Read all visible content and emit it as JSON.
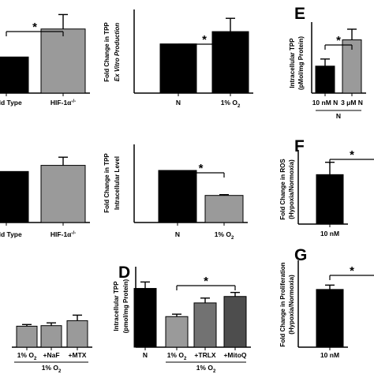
{
  "chart_data": [
    {
      "id": "A",
      "type": "bar",
      "panel_label": "",
      "ylabel": "",
      "ylim": [
        0,
        1.8
      ],
      "categories": [
        "Wild Type",
        "HIF-1α-/-"
      ],
      "values": [
        0.8,
        1.42
      ],
      "errors": [
        0,
        0.32
      ],
      "colors": [
        "#000000",
        "#9a9a9a"
      ],
      "significance": [
        {
          "from": 0,
          "to": 1,
          "label": "*"
        }
      ],
      "group_label": ""
    },
    {
      "id": "B",
      "type": "bar",
      "panel_label": "",
      "ylabel": "Fold Change in TPP Ex Vitro Production",
      "ylim": [
        0,
        1.7
      ],
      "categories": [
        "N",
        "1% O2"
      ],
      "values": [
        1.0,
        1.25
      ],
      "errors": [
        0,
        0.27
      ],
      "colors": [
        "#000000",
        "#000000"
      ],
      "significance": [
        {
          "from": 0,
          "to": 1,
          "label": "*"
        }
      ],
      "group_label": ""
    },
    {
      "id": "C",
      "type": "bar",
      "panel_label": "",
      "ylabel": "",
      "ylim": [
        0,
        1.5
      ],
      "categories": [
        "Wild Type",
        "HIF-1α-/-"
      ],
      "values": [
        1.0,
        1.12
      ],
      "errors": [
        0,
        0.16
      ],
      "colors": [
        "#000000",
        "#9a9a9a"
      ],
      "significance": [],
      "group_label": ""
    },
    {
      "id": "D1",
      "type": "bar",
      "panel_label": "",
      "ylabel": "Fold Change in TPP Intracellular Level",
      "ylim": [
        0,
        1.5
      ],
      "categories": [
        "N",
        "1% O2"
      ],
      "values": [
        1.0,
        0.52
      ],
      "errors": [
        0,
        0.015
      ],
      "colors": [
        "#000000",
        "#9a9a9a"
      ],
      "significance": [
        {
          "from": 0,
          "to": 1,
          "label": "*"
        }
      ],
      "group_label": ""
    },
    {
      "id": "E1",
      "type": "bar",
      "panel_label": "",
      "ylabel": "",
      "ylim": [
        0,
        100
      ],
      "categories": [
        "1% O2",
        "+NaF",
        "+MTX"
      ],
      "values": [
        38,
        39,
        48
      ],
      "errors": [
        3,
        5,
        10
      ],
      "colors": [
        "#9a9a9a",
        "#9a9a9a",
        "#9a9a9a"
      ],
      "significance": [],
      "group_label": "1% O2"
    },
    {
      "id": "D",
      "type": "bar",
      "panel_label": "D",
      "ylabel": "Intracellular TPP (pmol/mg Protein)",
      "ylim": [
        0,
        100
      ],
      "categories": [
        "N",
        "1% O2",
        "+TRLX",
        "+MitoQ"
      ],
      "values": [
        73,
        38,
        55,
        63
      ],
      "errors": [
        8,
        3,
        6,
        5
      ],
      "colors": [
        "#000000",
        "#9a9a9a",
        "#727272",
        "#4d4d4d"
      ],
      "significance": [
        {
          "from": 1,
          "to": 3,
          "label": "*"
        }
      ],
      "group_label": "1% O2"
    },
    {
      "id": "E",
      "type": "bar",
      "panel_label": "E",
      "ylabel": "Intracellular TPP (pMol/mg Protein)",
      "ylim": [
        0,
        100
      ],
      "categories": [
        "10 nM N",
        "3 μM N"
      ],
      "values": [
        38,
        75
      ],
      "errors": [
        10,
        15
      ],
      "colors": [
        "#000000",
        "#9a9a9a"
      ],
      "significance": [
        {
          "from": 0,
          "to": 1,
          "label": "*"
        }
      ],
      "group_label": "N"
    },
    {
      "id": "F",
      "type": "bar",
      "panel_label": "F",
      "ylabel": "Fold Change in ROS (Hypoxia/Normoxia)",
      "ylim": [
        0,
        3
      ],
      "categories": [
        "10 nM"
      ],
      "values": [
        2.0
      ],
      "errors": [
        0.5
      ],
      "colors": [
        "#000000"
      ],
      "significance": [
        {
          "from": 0,
          "to": 1,
          "label": "*"
        }
      ],
      "group_label": ""
    },
    {
      "id": "G",
      "type": "bar",
      "panel_label": "G",
      "ylabel": "Fold Change in Proliferation (Hypoxia/Normoxia)",
      "ylim": [
        0,
        2.0
      ],
      "categories": [
        "10 nM"
      ],
      "values": [
        1.33
      ],
      "errors": [
        0.1
      ],
      "colors": [
        "#000000"
      ],
      "significance": [
        {
          "from": 0,
          "to": 1,
          "label": "*"
        }
      ],
      "group_label": ""
    }
  ]
}
